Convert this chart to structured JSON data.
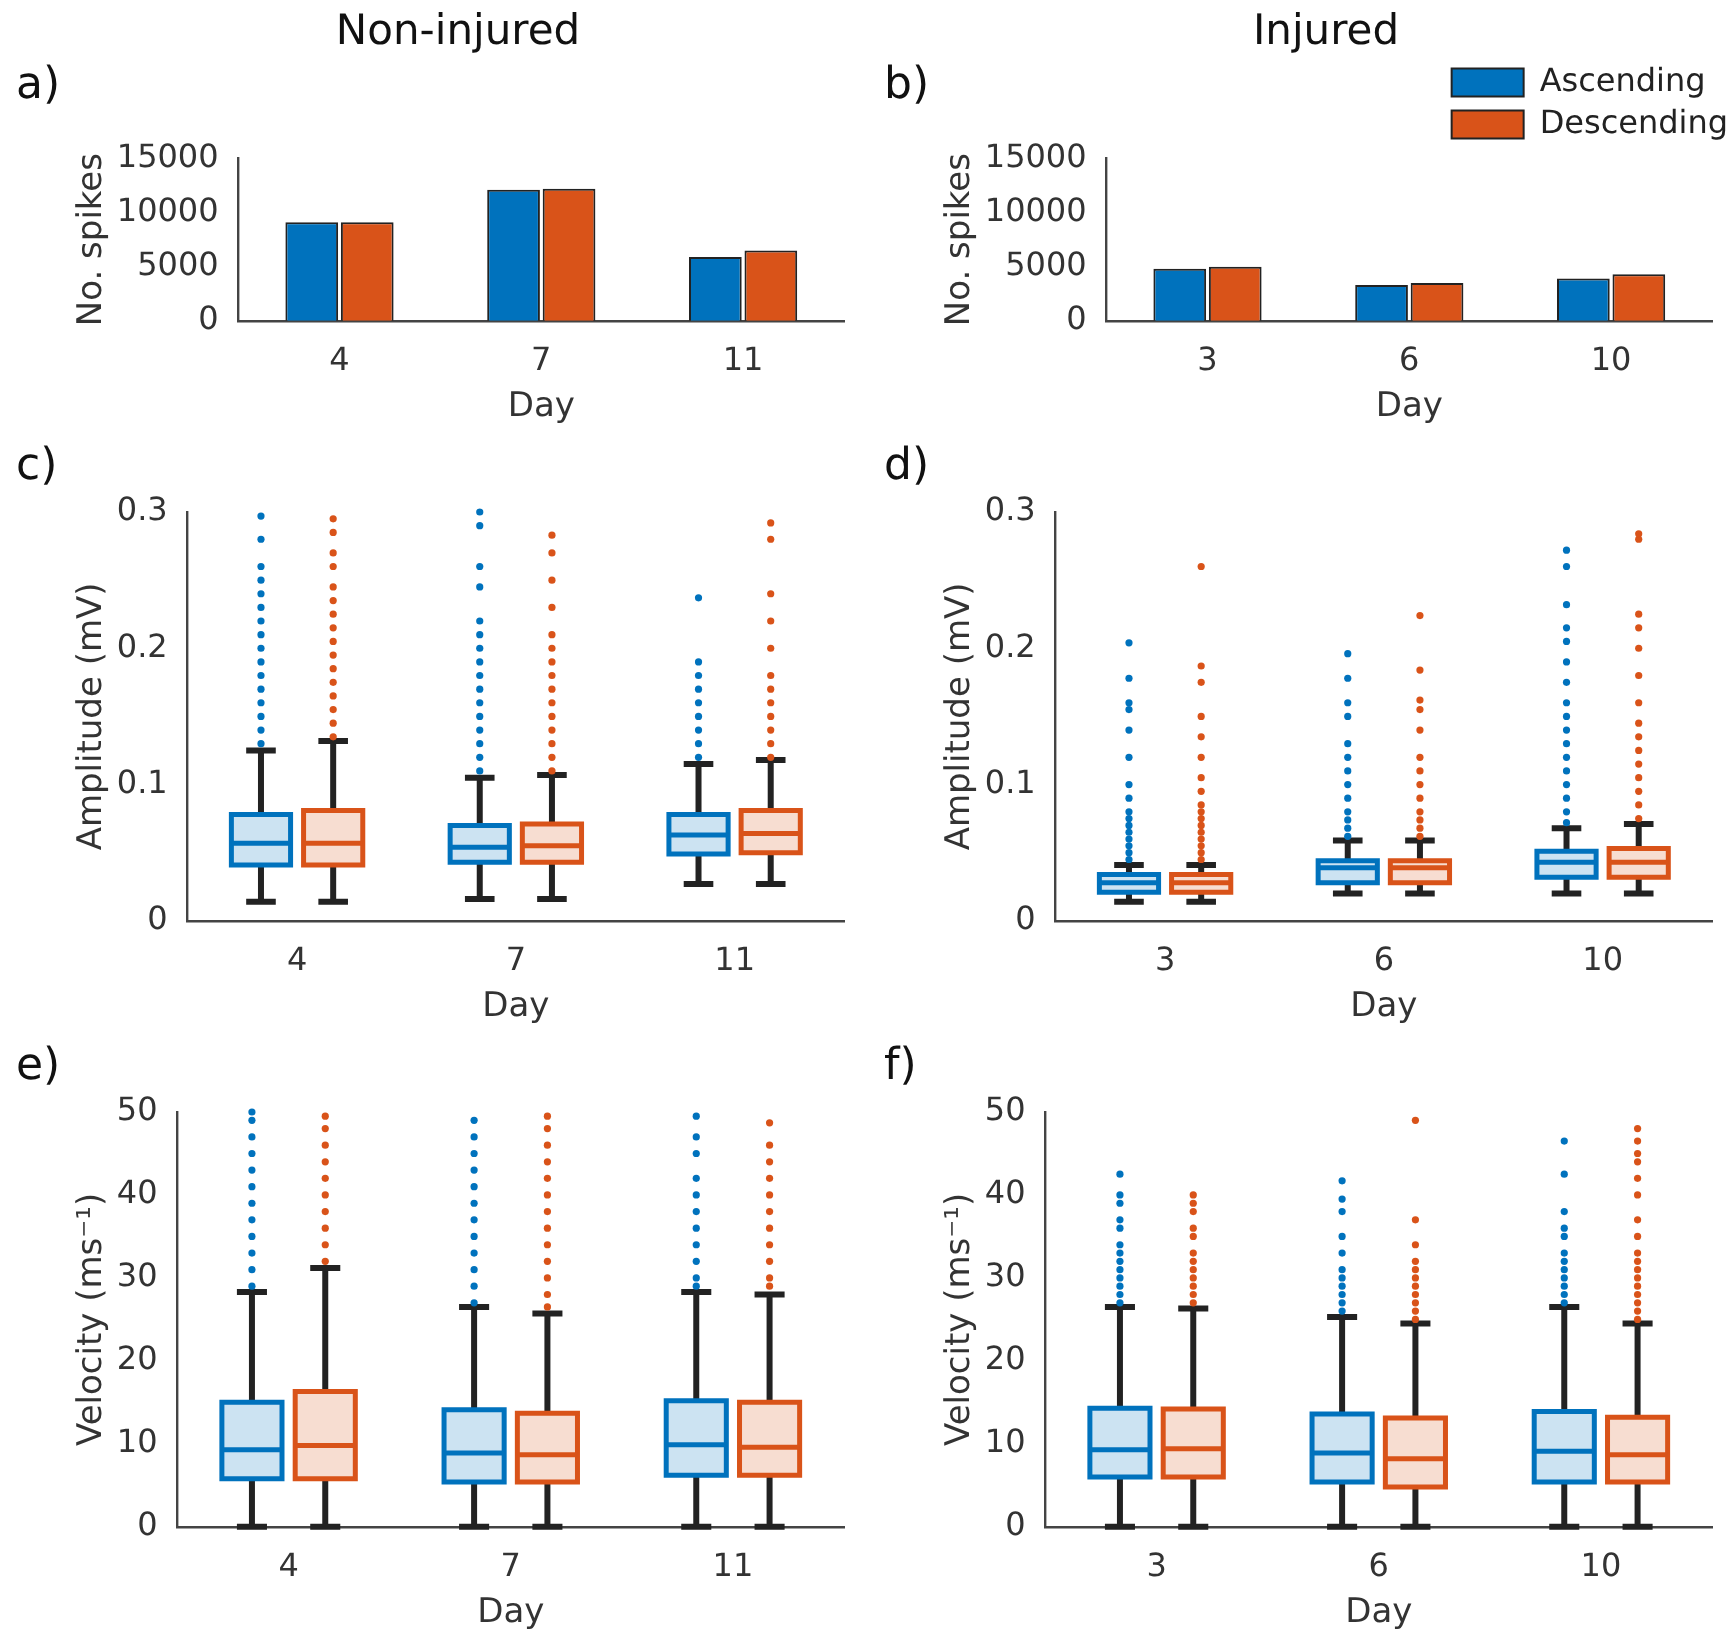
{
  "chart_data": [
    {
      "type": "bar",
      "title": "Non-injured",
      "annotations": [
        "a)"
      ],
      "xlabel": "Day",
      "ylabel": "No. spikes",
      "categories": [
        "4",
        "7",
        "11"
      ],
      "ylim": [
        0,
        15000
      ],
      "yticks": [
        0,
        5000,
        10000,
        15000
      ],
      "series": [
        {
          "color": "#0072bd",
          "values": [
            9100,
            12100,
            5900
          ]
        },
        {
          "color": "#d95319",
          "values": [
            9100,
            12200,
            6500
          ]
        }
      ]
    },
    {
      "type": "bar",
      "title": "Injured",
      "annotations": [
        "b)"
      ],
      "xlabel": "Day",
      "ylabel": "No. spikes",
      "categories": [
        "3",
        "6",
        "10"
      ],
      "ylim": [
        0,
        15000
      ],
      "yticks": [
        0,
        5000,
        10000,
        15000
      ],
      "legend": "top right",
      "series": [
        {
          "name": "Ascending",
          "color": "#0072bd",
          "values": [
            4800,
            3300,
            3900
          ]
        },
        {
          "name": "Descending",
          "color": "#d95319",
          "values": [
            5000,
            3500,
            4300
          ]
        }
      ]
    },
    {
      "type": "box",
      "annotations": [
        "c)"
      ],
      "xlabel": "Day",
      "ylabel": "Amplitude (mV)",
      "categories": [
        "4",
        "7",
        "11"
      ],
      "ylim": [
        0,
        0.3
      ],
      "yticks": [
        0,
        0.1,
        0.2,
        0.3
      ],
      "series": [
        {
          "color": "#0072bd",
          "boxes": [
            {
              "low": 0.014,
              "q1": 0.041,
              "median": 0.057,
              "q3": 0.078,
              "high": 0.125,
              "outliers": [
                0.13,
                0.14,
                0.15,
                0.16,
                0.17,
                0.18,
                0.19,
                0.2,
                0.21,
                0.22,
                0.23,
                0.24,
                0.25,
                0.26,
                0.28,
                0.297
              ]
            },
            {
              "low": 0.016,
              "q1": 0.043,
              "median": 0.054,
              "q3": 0.07,
              "high": 0.105,
              "outliers": [
                0.11,
                0.12,
                0.13,
                0.14,
                0.15,
                0.16,
                0.17,
                0.18,
                0.19,
                0.2,
                0.21,
                0.22,
                0.245,
                0.26,
                0.29,
                0.3
              ]
            },
            {
              "low": 0.027,
              "q1": 0.049,
              "median": 0.063,
              "q3": 0.078,
              "high": 0.115,
              "outliers": [
                0.12,
                0.13,
                0.14,
                0.15,
                0.16,
                0.17,
                0.18,
                0.19,
                0.237
              ]
            }
          ]
        },
        {
          "color": "#d95319",
          "boxes": [
            {
              "low": 0.014,
              "q1": 0.041,
              "median": 0.057,
              "q3": 0.081,
              "high": 0.132,
              "outliers": [
                0.135,
                0.145,
                0.155,
                0.165,
                0.175,
                0.185,
                0.195,
                0.205,
                0.215,
                0.225,
                0.235,
                0.245,
                0.26,
                0.27,
                0.285,
                0.295
              ]
            },
            {
              "low": 0.016,
              "q1": 0.043,
              "median": 0.055,
              "q3": 0.071,
              "high": 0.107,
              "outliers": [
                0.11,
                0.12,
                0.13,
                0.14,
                0.15,
                0.16,
                0.17,
                0.18,
                0.19,
                0.2,
                0.21,
                0.23,
                0.25,
                0.27,
                0.283
              ]
            },
            {
              "low": 0.027,
              "q1": 0.05,
              "median": 0.064,
              "q3": 0.081,
              "high": 0.118,
              "outliers": [
                0.12,
                0.13,
                0.14,
                0.15,
                0.16,
                0.17,
                0.18,
                0.2,
                0.22,
                0.24,
                0.28,
                0.292
              ]
            }
          ]
        }
      ]
    },
    {
      "type": "box",
      "annotations": [
        "d)"
      ],
      "xlabel": "Day",
      "ylabel": "Amplitude (mV)",
      "categories": [
        "3",
        "6",
        "10"
      ],
      "ylim": [
        0,
        0.3
      ],
      "yticks": [
        0,
        0.1,
        0.2,
        0.3
      ],
      "series": [
        {
          "color": "#0072bd",
          "boxes": [
            {
              "low": 0.014,
              "q1": 0.021,
              "median": 0.028,
              "q3": 0.034,
              "high": 0.041,
              "outliers": [
                0.045,
                0.05,
                0.055,
                0.06,
                0.065,
                0.07,
                0.075,
                0.08,
                0.09,
                0.1,
                0.12,
                0.14,
                0.155,
                0.16,
                0.178,
                0.204
              ]
            },
            {
              "low": 0.02,
              "q1": 0.028,
              "median": 0.039,
              "q3": 0.044,
              "high": 0.059,
              "outliers": [
                0.062,
                0.068,
                0.074,
                0.08,
                0.09,
                0.1,
                0.11,
                0.12,
                0.13,
                0.15,
                0.16,
                0.178,
                0.196
              ]
            },
            {
              "low": 0.02,
              "q1": 0.032,
              "median": 0.043,
              "q3": 0.051,
              "high": 0.068,
              "outliers": [
                0.072,
                0.08,
                0.09,
                0.1,
                0.11,
                0.12,
                0.13,
                0.14,
                0.15,
                0.16,
                0.175,
                0.19,
                0.205,
                0.215,
                0.232,
                0.26,
                0.272
              ]
            }
          ]
        },
        {
          "color": "#d95319",
          "boxes": [
            {
              "low": 0.014,
              "q1": 0.021,
              "median": 0.028,
              "q3": 0.034,
              "high": 0.041,
              "outliers": [
                0.045,
                0.05,
                0.055,
                0.06,
                0.065,
                0.07,
                0.075,
                0.08,
                0.085,
                0.095,
                0.105,
                0.12,
                0.135,
                0.15,
                0.175,
                0.187,
                0.26
              ]
            },
            {
              "low": 0.02,
              "q1": 0.028,
              "median": 0.039,
              "q3": 0.044,
              "high": 0.059,
              "outliers": [
                0.062,
                0.068,
                0.074,
                0.08,
                0.09,
                0.1,
                0.11,
                0.12,
                0.14,
                0.155,
                0.162,
                0.184,
                0.224
              ]
            },
            {
              "low": 0.02,
              "q1": 0.032,
              "median": 0.043,
              "q3": 0.053,
              "high": 0.071,
              "outliers": [
                0.075,
                0.085,
                0.095,
                0.105,
                0.115,
                0.125,
                0.135,
                0.145,
                0.16,
                0.18,
                0.2,
                0.215,
                0.225,
                0.28,
                0.284
              ]
            }
          ]
        }
      ]
    },
    {
      "type": "box",
      "annotations": [
        "e)"
      ],
      "xlabel": "Day",
      "ylabel": "Velocity (ms⁻¹)",
      "categories": [
        "4",
        "7",
        "11"
      ],
      "ylim": [
        0,
        50
      ],
      "yticks": [
        0,
        10,
        20,
        30,
        40,
        50
      ],
      "series": [
        {
          "color": "#0072bd",
          "boxes": [
            {
              "low": 0,
              "q1": 5.8,
              "median": 9.3,
              "q3": 15,
              "high": 28.3,
              "outliers": [
                29,
                31,
                33,
                35,
                37,
                39,
                41,
                43,
                45,
                47,
                49,
                50
              ]
            },
            {
              "low": 0,
              "q1": 5.4,
              "median": 8.9,
              "q3": 14.1,
              "high": 26.5,
              "outliers": [
                27,
                29,
                31,
                33,
                35,
                37,
                39,
                41,
                43,
                45,
                47,
                49
              ]
            },
            {
              "low": 0,
              "q1": 6.2,
              "median": 9.9,
              "q3": 15.2,
              "high": 28.3,
              "outliers": [
                29,
                30,
                32,
                34,
                36,
                38,
                40,
                42,
                45,
                47,
                49.5
              ]
            }
          ]
        },
        {
          "color": "#d95319",
          "boxes": [
            {
              "low": 0,
              "q1": 5.8,
              "median": 9.8,
              "q3": 16.3,
              "high": 31.2,
              "outliers": [
                32,
                34,
                36,
                38,
                40,
                42,
                44,
                46,
                48,
                49.5
              ]
            },
            {
              "low": 0,
              "q1": 5.4,
              "median": 8.7,
              "q3": 13.7,
              "high": 25.7,
              "outliers": [
                26.5,
                28,
                30,
                32,
                34,
                36,
                38,
                40,
                42,
                44,
                46,
                48,
                49.5
              ]
            },
            {
              "low": 0,
              "q1": 6.2,
              "median": 9.6,
              "q3": 15,
              "high": 28,
              "outliers": [
                29,
                30,
                32,
                34,
                36,
                38,
                40,
                42,
                44,
                46,
                48.7
              ]
            }
          ]
        }
      ]
    },
    {
      "type": "box",
      "annotations": [
        "f)"
      ],
      "xlabel": "Day",
      "ylabel": "Velocity (ms⁻¹)",
      "categories": [
        "3",
        "6",
        "10"
      ],
      "ylim": [
        0,
        50
      ],
      "yticks": [
        0,
        10,
        20,
        30,
        40,
        50
      ],
      "series": [
        {
          "color": "#0072bd",
          "boxes": [
            {
              "low": 0,
              "q1": 6,
              "median": 9.3,
              "q3": 14.3,
              "high": 26.5,
              "outliers": [
                27,
                28,
                29,
                30,
                31,
                32,
                33,
                34,
                36,
                37,
                39,
                40,
                42.5
              ]
            },
            {
              "low": 0,
              "q1": 5.4,
              "median": 8.9,
              "q3": 13.6,
              "high": 25.3,
              "outliers": [
                26,
                27,
                28,
                29,
                30,
                31,
                33,
                35,
                38,
                39.5,
                41.7
              ]
            },
            {
              "low": 0,
              "q1": 5.4,
              "median": 9.1,
              "q3": 13.9,
              "high": 26.5,
              "outliers": [
                27,
                28,
                29,
                30,
                31,
                32,
                33,
                35,
                36,
                38,
                42.5,
                46.5
              ]
            }
          ]
        },
        {
          "color": "#d95319",
          "boxes": [
            {
              "low": 0,
              "q1": 6,
              "median": 9.4,
              "q3": 14.2,
              "high": 26.3,
              "outliers": [
                27,
                28,
                29,
                30,
                31,
                32,
                33,
                35,
                36,
                38,
                39,
                40
              ]
            },
            {
              "low": 0,
              "q1": 4.8,
              "median": 8.2,
              "q3": 13.1,
              "high": 24.5,
              "outliers": [
                25,
                26,
                27,
                28,
                29,
                30,
                31,
                32,
                34,
                37,
                49
              ]
            },
            {
              "low": 0,
              "q1": 5.4,
              "median": 8.7,
              "q3": 13.2,
              "high": 24.5,
              "outliers": [
                25,
                26,
                27,
                28,
                29,
                30,
                31,
                32,
                33,
                35,
                37,
                40,
                42,
                44,
                45,
                46.5,
                48
              ]
            }
          ]
        }
      ]
    }
  ]
}
